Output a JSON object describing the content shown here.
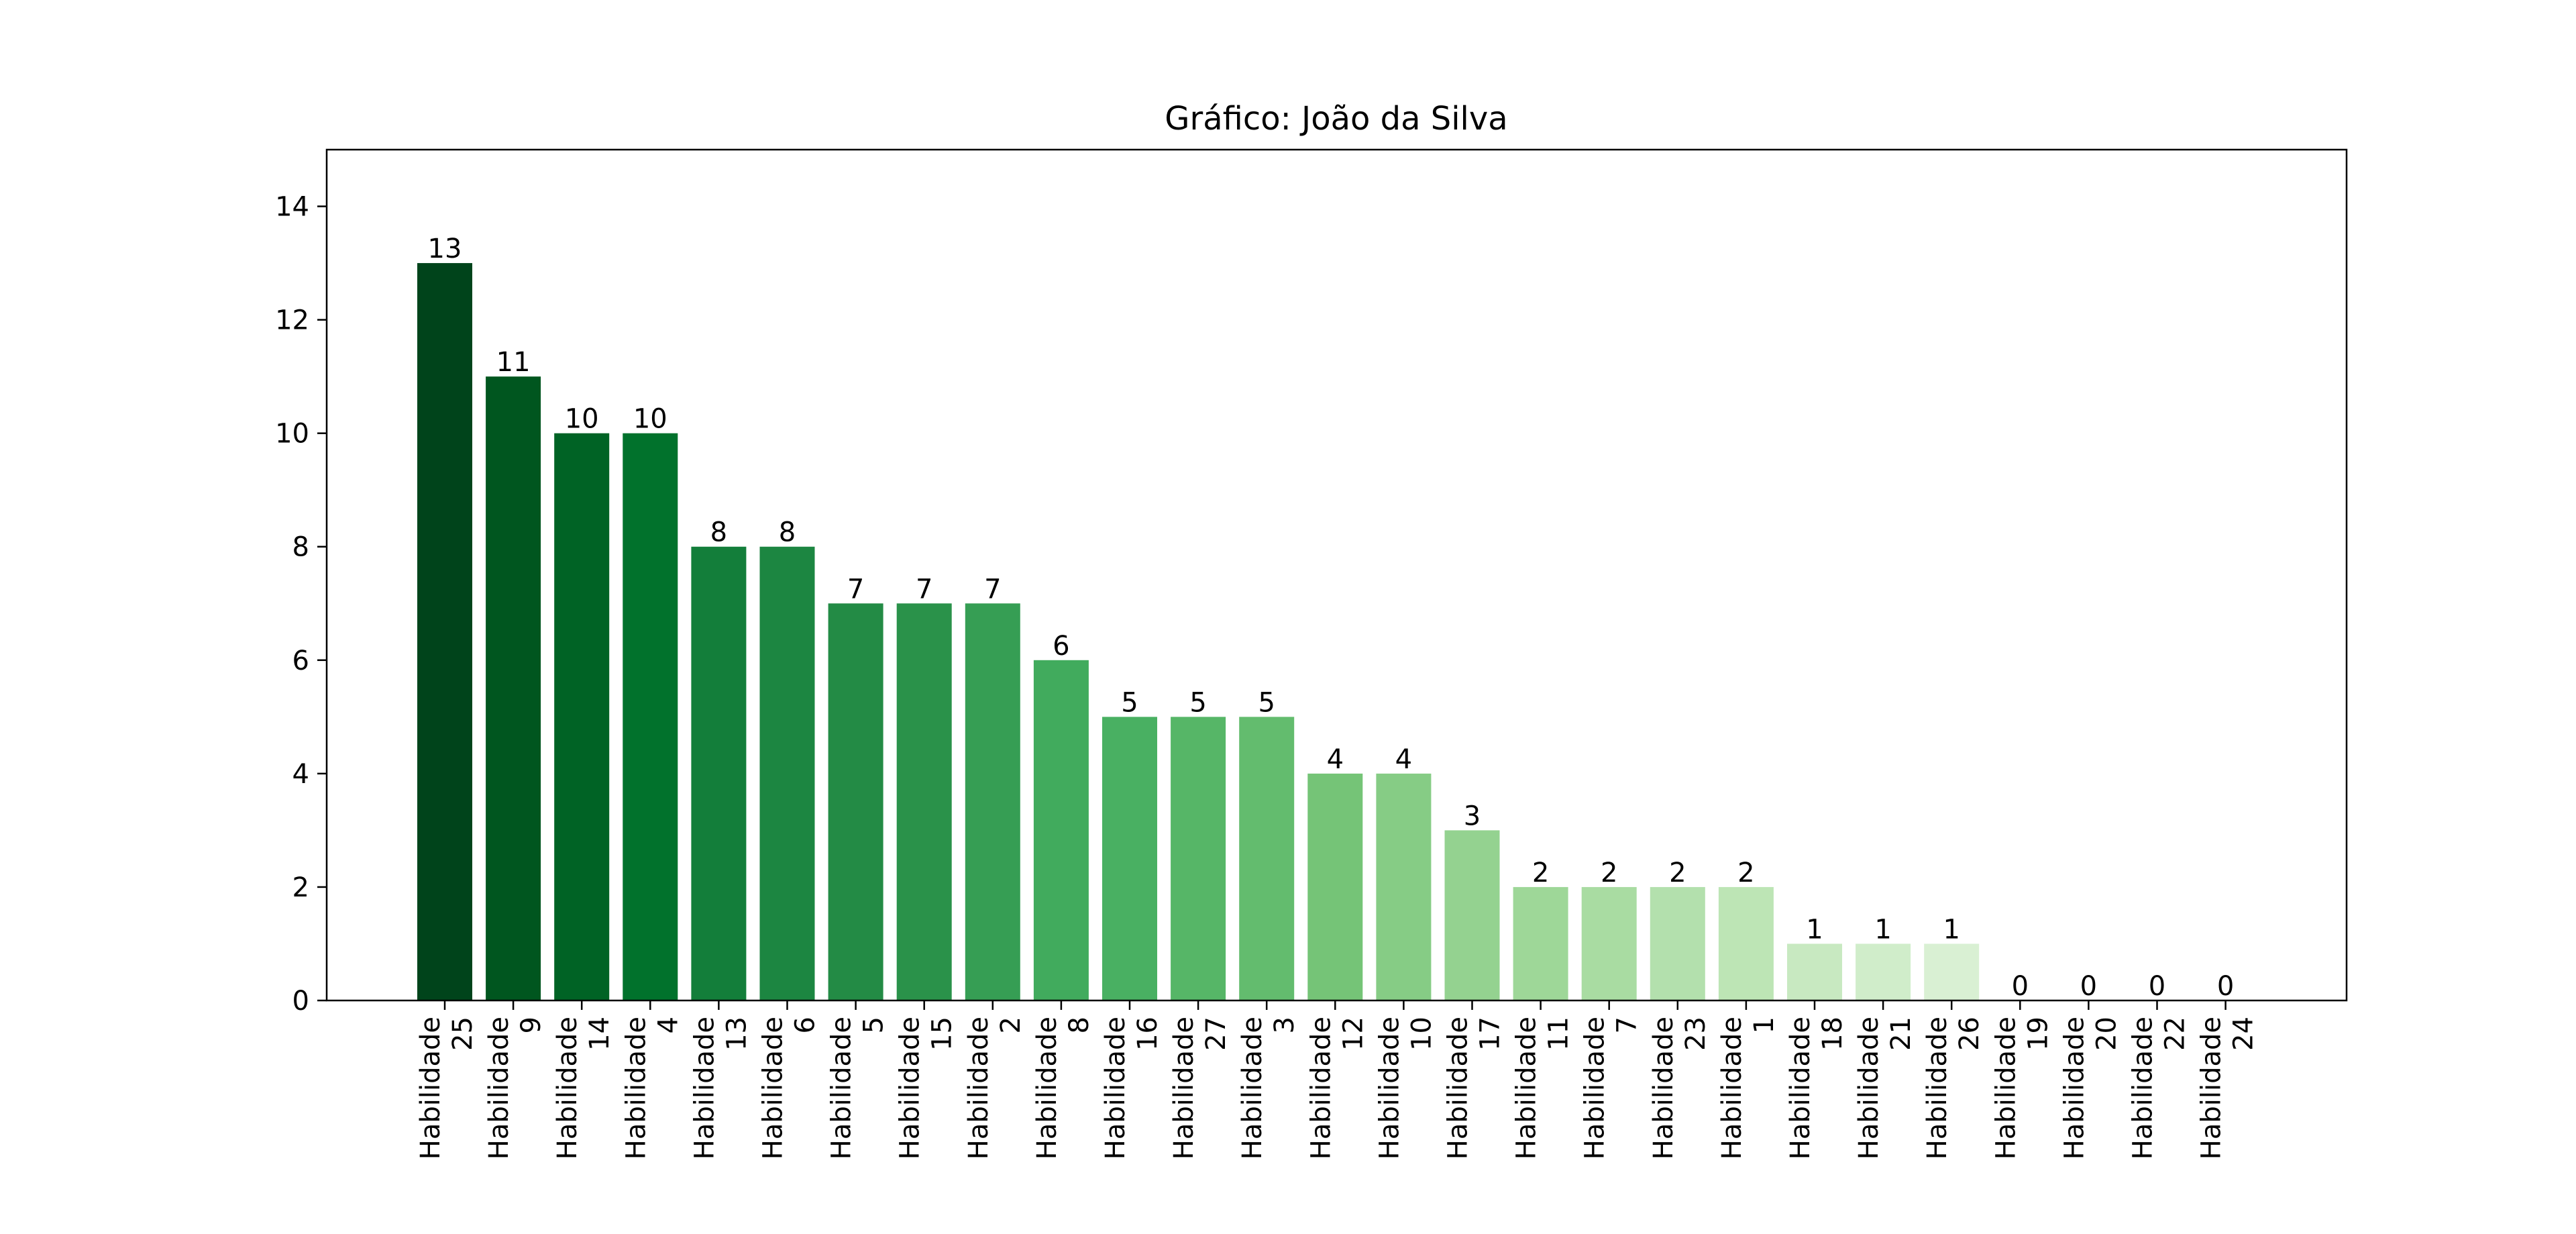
{
  "chart_data": {
    "type": "bar",
    "title": "Gráfico: João da Silva",
    "xlabel": "",
    "ylabel": "",
    "ylim": [
      0,
      15
    ],
    "yticks": [
      0,
      2,
      4,
      6,
      8,
      10,
      12,
      14
    ],
    "grid": false,
    "categories": [
      "Habilidade 25",
      "Habilidade 9",
      "Habilidade 14",
      "Habilidade 4",
      "Habilidade 13",
      "Habilidade 6",
      "Habilidade 5",
      "Habilidade 15",
      "Habilidade 2",
      "Habilidade 8",
      "Habilidade 16",
      "Habilidade 27",
      "Habilidade 3",
      "Habilidade 12",
      "Habilidade 10",
      "Habilidade 17",
      "Habilidade 11",
      "Habilidade 7",
      "Habilidade 23",
      "Habilidade 1",
      "Habilidade 18",
      "Habilidade 21",
      "Habilidade 26",
      "Habilidade 19",
      "Habilidade 20",
      "Habilidade 22",
      "Habilidade 24"
    ],
    "values": [
      13,
      11,
      10,
      10,
      8,
      8,
      7,
      7,
      7,
      6,
      5,
      5,
      5,
      4,
      4,
      3,
      2,
      2,
      2,
      2,
      1,
      1,
      1,
      0,
      0,
      0,
      0
    ],
    "colors": [
      "#00441b",
      "#00561f",
      "#006325",
      "#01722c",
      "#137e3a",
      "#1c8641",
      "#238b45",
      "#2a924a",
      "#369e54",
      "#41ab5d",
      "#49b062",
      "#56b667",
      "#63bc6e",
      "#75c477",
      "#86cc85",
      "#94d290",
      "#9ed798",
      "#a9dca2",
      "#b3e0ad",
      "#bde5b5",
      "#c8e9c1",
      "#d0edca",
      "#d9f0d3",
      "#e1f3dc",
      "#e9f7e5",
      "#f0f9ec",
      "#f7fcf5"
    ]
  }
}
